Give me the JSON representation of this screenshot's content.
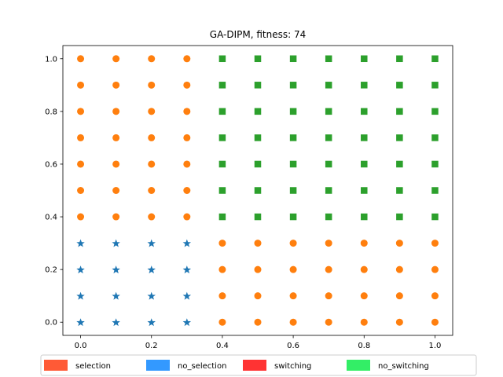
{
  "chart_data": {
    "type": "scatter",
    "title": "GA-DIPM, fitness: 74",
    "xlabel": "",
    "ylabel": "",
    "xlim": [
      -0.05,
      1.05
    ],
    "ylim": [
      -0.05,
      1.05
    ],
    "xticks": [
      "0.0",
      "0.2",
      "0.4",
      "0.6",
      "0.8",
      "1.0"
    ],
    "yticks": [
      "0.0",
      "0.2",
      "0.4",
      "0.6",
      "0.8",
      "1.0"
    ],
    "grid": false,
    "marker_colors": {
      "star": "#1f77b4",
      "circle": "#ff7f0e",
      "square": "#2ca02c"
    },
    "points": {
      "star": [
        [
          0.0,
          0.0
        ],
        [
          0.1,
          0.0
        ],
        [
          0.2,
          0.0
        ],
        [
          0.3,
          0.0
        ],
        [
          0.0,
          0.1
        ],
        [
          0.1,
          0.1
        ],
        [
          0.2,
          0.1
        ],
        [
          0.3,
          0.1
        ],
        [
          0.0,
          0.2
        ],
        [
          0.1,
          0.2
        ],
        [
          0.2,
          0.2
        ],
        [
          0.3,
          0.2
        ],
        [
          0.0,
          0.3
        ],
        [
          0.1,
          0.3
        ],
        [
          0.2,
          0.3
        ],
        [
          0.3,
          0.3
        ]
      ],
      "circle": [
        [
          0.4,
          0.0
        ],
        [
          0.5,
          0.0
        ],
        [
          0.6,
          0.0
        ],
        [
          0.7,
          0.0
        ],
        [
          0.8,
          0.0
        ],
        [
          0.9,
          0.0
        ],
        [
          1.0,
          0.0
        ],
        [
          0.4,
          0.1
        ],
        [
          0.5,
          0.1
        ],
        [
          0.6,
          0.1
        ],
        [
          0.7,
          0.1
        ],
        [
          0.8,
          0.1
        ],
        [
          0.9,
          0.1
        ],
        [
          1.0,
          0.1
        ],
        [
          0.4,
          0.2
        ],
        [
          0.5,
          0.2
        ],
        [
          0.6,
          0.2
        ],
        [
          0.7,
          0.2
        ],
        [
          0.8,
          0.2
        ],
        [
          0.9,
          0.2
        ],
        [
          1.0,
          0.2
        ],
        [
          0.4,
          0.3
        ],
        [
          0.5,
          0.3
        ],
        [
          0.6,
          0.3
        ],
        [
          0.7,
          0.3
        ],
        [
          0.8,
          0.3
        ],
        [
          0.9,
          0.3
        ],
        [
          1.0,
          0.3
        ],
        [
          0.0,
          0.4
        ],
        [
          0.1,
          0.4
        ],
        [
          0.2,
          0.4
        ],
        [
          0.3,
          0.4
        ],
        [
          0.0,
          0.5
        ],
        [
          0.1,
          0.5
        ],
        [
          0.2,
          0.5
        ],
        [
          0.3,
          0.5
        ],
        [
          0.0,
          0.6
        ],
        [
          0.1,
          0.6
        ],
        [
          0.2,
          0.6
        ],
        [
          0.3,
          0.6
        ],
        [
          0.0,
          0.7
        ],
        [
          0.1,
          0.7
        ],
        [
          0.2,
          0.7
        ],
        [
          0.3,
          0.7
        ],
        [
          0.0,
          0.8
        ],
        [
          0.1,
          0.8
        ],
        [
          0.2,
          0.8
        ],
        [
          0.3,
          0.8
        ],
        [
          0.0,
          0.9
        ],
        [
          0.1,
          0.9
        ],
        [
          0.2,
          0.9
        ],
        [
          0.3,
          0.9
        ],
        [
          0.0,
          1.0
        ],
        [
          0.1,
          1.0
        ],
        [
          0.2,
          1.0
        ],
        [
          0.3,
          1.0
        ]
      ],
      "square": [
        [
          0.4,
          0.4
        ],
        [
          0.5,
          0.4
        ],
        [
          0.6,
          0.4
        ],
        [
          0.7,
          0.4
        ],
        [
          0.8,
          0.4
        ],
        [
          0.9,
          0.4
        ],
        [
          1.0,
          0.4
        ],
        [
          0.4,
          0.5
        ],
        [
          0.5,
          0.5
        ],
        [
          0.6,
          0.5
        ],
        [
          0.7,
          0.5
        ],
        [
          0.8,
          0.5
        ],
        [
          0.9,
          0.5
        ],
        [
          1.0,
          0.5
        ],
        [
          0.4,
          0.6
        ],
        [
          0.5,
          0.6
        ],
        [
          0.6,
          0.6
        ],
        [
          0.7,
          0.6
        ],
        [
          0.8,
          0.6
        ],
        [
          0.9,
          0.6
        ],
        [
          1.0,
          0.6
        ],
        [
          0.4,
          0.7
        ],
        [
          0.5,
          0.7
        ],
        [
          0.6,
          0.7
        ],
        [
          0.7,
          0.7
        ],
        [
          0.8,
          0.7
        ],
        [
          0.9,
          0.7
        ],
        [
          1.0,
          0.7
        ],
        [
          0.4,
          0.8
        ],
        [
          0.5,
          0.8
        ],
        [
          0.6,
          0.8
        ],
        [
          0.7,
          0.8
        ],
        [
          0.8,
          0.8
        ],
        [
          0.9,
          0.8
        ],
        [
          1.0,
          0.8
        ],
        [
          0.4,
          0.9
        ],
        [
          0.5,
          0.9
        ],
        [
          0.6,
          0.9
        ],
        [
          0.7,
          0.9
        ],
        [
          0.8,
          0.9
        ],
        [
          0.9,
          0.9
        ],
        [
          1.0,
          0.9
        ],
        [
          0.4,
          1.0
        ],
        [
          0.5,
          1.0
        ],
        [
          0.6,
          1.0
        ],
        [
          0.7,
          1.0
        ],
        [
          0.8,
          1.0
        ],
        [
          0.9,
          1.0
        ],
        [
          1.0,
          1.0
        ]
      ]
    },
    "legend": {
      "placement": "bottom",
      "entries": [
        {
          "label": "selection",
          "color": "#ff5a36"
        },
        {
          "label": "no_selection",
          "color": "#3399ff"
        },
        {
          "label": "switching",
          "color": "#ff3333"
        },
        {
          "label": "no_switching",
          "color": "#33ee66"
        }
      ]
    }
  }
}
